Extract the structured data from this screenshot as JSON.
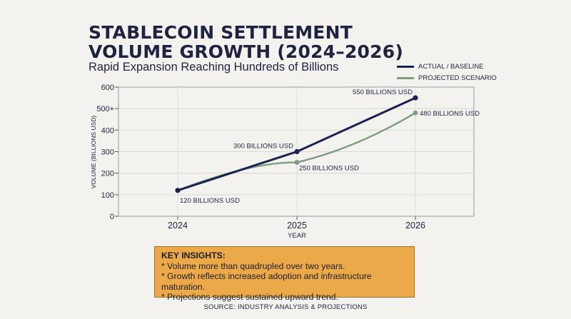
{
  "chart_data": {
    "type": "line",
    "title": "STABLECOIN SETTLEMENT VOLUME GROWTH (2024–2026)",
    "subtitle": "Rapid Expansion Reaching Hundreds of Billions",
    "xlabel": "YEAR",
    "ylabel": "VOLUME (BILLIONS USD)",
    "categories": [
      "2024",
      "2025",
      "2026"
    ],
    "ylim": [
      0,
      600
    ],
    "yticks": [
      "0",
      "100",
      "200",
      "300",
      "400",
      "500+",
      "600"
    ],
    "grid": true,
    "legend_position": "top-right",
    "series": [
      {
        "name": "ACTUAL / BASELINE",
        "color": "#1b2150",
        "values": [
          120,
          300,
          550
        ],
        "labels": [
          "120 BILLIONS USD",
          "300 BILLIONS USD",
          "550 BILLIONS USD"
        ]
      },
      {
        "name": "PROJECTED SCENARIO",
        "color": "#7e9c80",
        "values": [
          120,
          250,
          480
        ],
        "labels": [
          "",
          "250 BILLIONS USD",
          "480 BILLIONS USD"
        ]
      }
    ]
  },
  "insights": {
    "title": "KEY INSIGHTS:",
    "items": [
      "* Volume more than quadrupled over two years.",
      "* Growth reflects increased adoption and infrastructure maturation.",
      "* Projections suggest sustained upward trend."
    ]
  },
  "source": "SOURCE: INDUSTRY ANALYSIS & PROJECTIONS"
}
